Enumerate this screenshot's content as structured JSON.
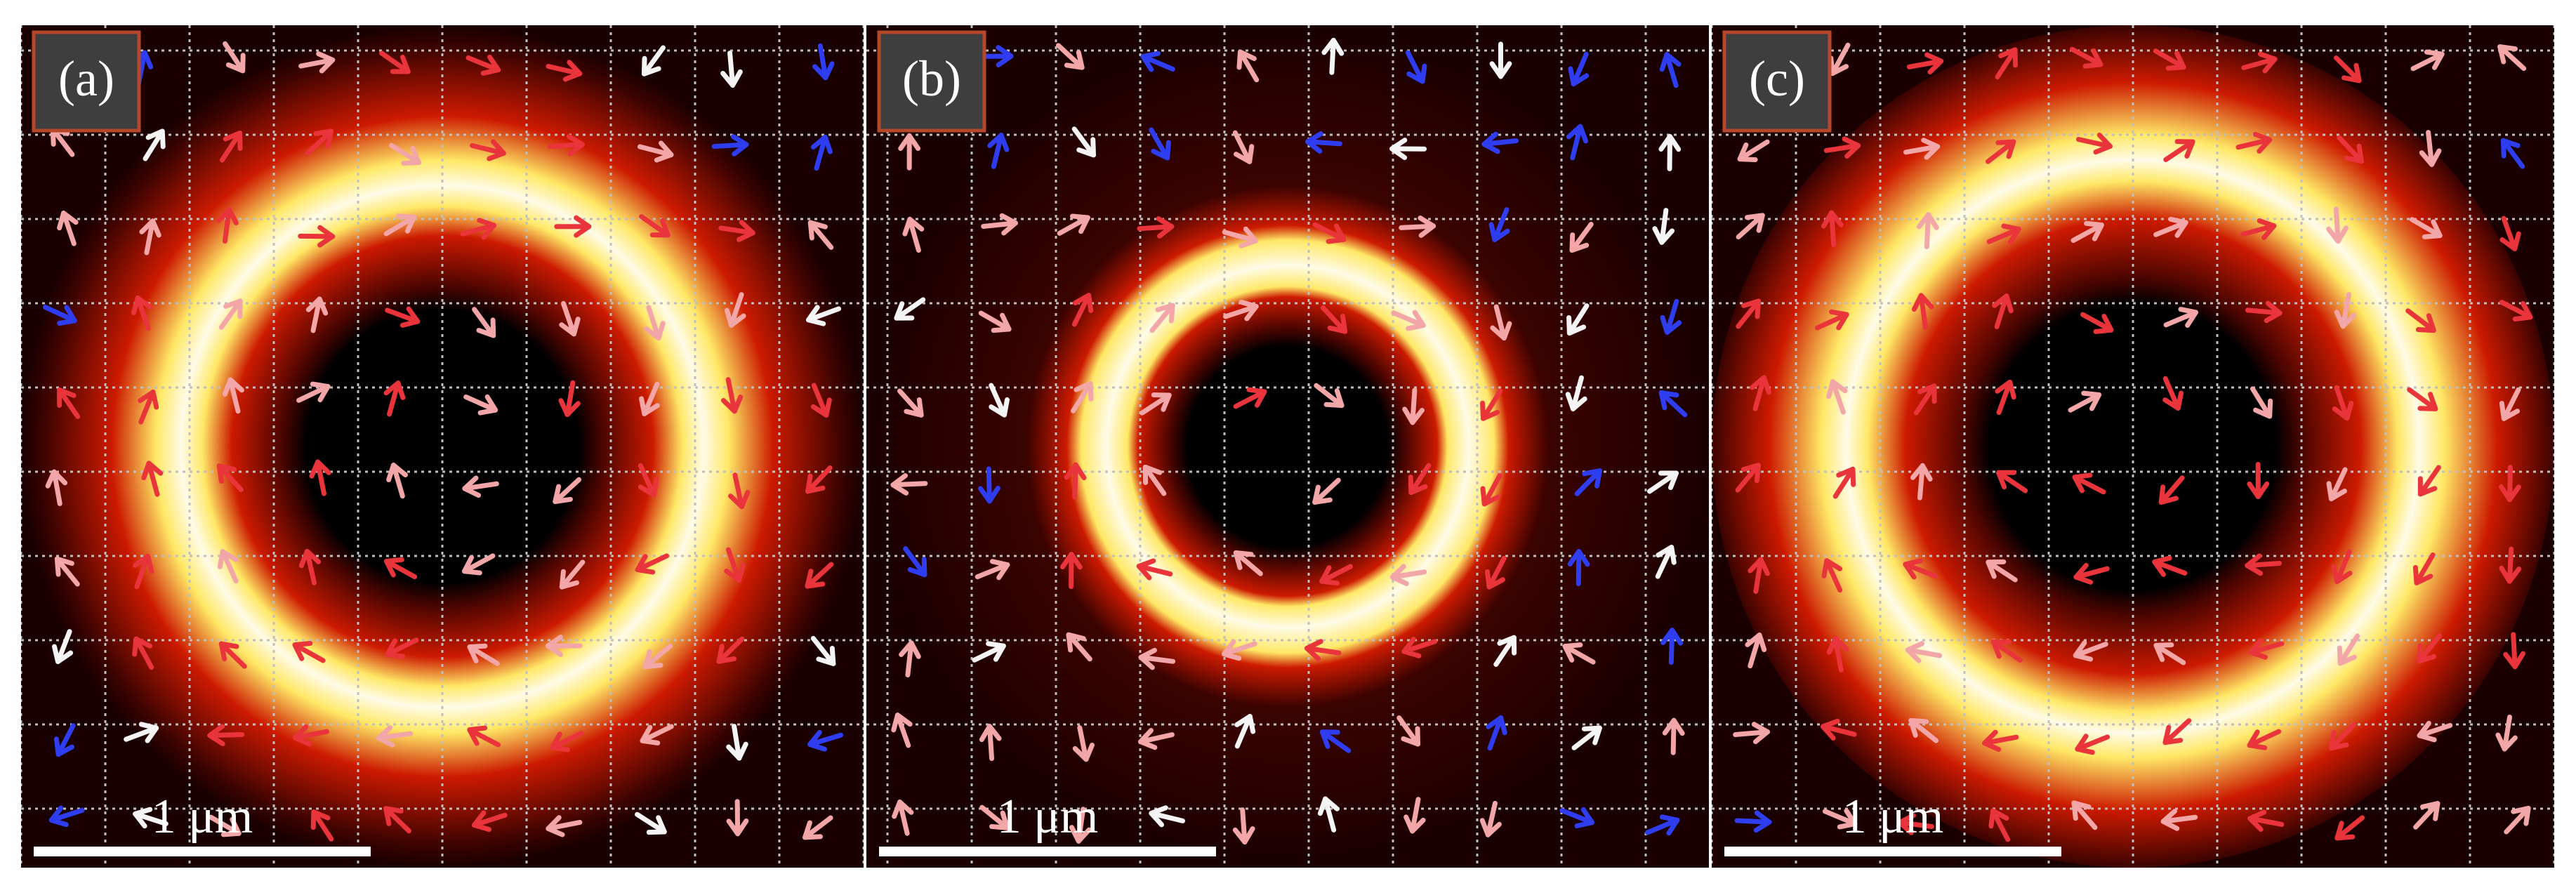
{
  "panels": [
    {
      "id": "a",
      "label": "(a)",
      "scale_bar_label": "1 μm",
      "ring": {
        "dark_core": 0.38,
        "bright_peak": 0.62,
        "fade": 0.95
      },
      "arrow_rows": 10,
      "arrow_cols": 10
    },
    {
      "id": "b",
      "label": "(b)",
      "scale_bar_label": "1 μm",
      "ring": {
        "dark_core": 0.28,
        "bright_peak": 0.43,
        "fade": 0.62
      },
      "arrow_rows": 10,
      "arrow_cols": 10
    },
    {
      "id": "c",
      "label": "(c)",
      "scale_bar_label": "1 μm",
      "ring": {
        "dark_core": 0.4,
        "bright_peak": 0.68,
        "fade": 1.05
      },
      "arrow_rows": 10,
      "arrow_cols": 10
    }
  ],
  "colors": {
    "background": "#000000",
    "ring_red": "#cc1a00",
    "ring_yellow": "#ffe866",
    "ring_white": "#fffbe8",
    "grid": "#bfbfbf",
    "label_box": "#3e3e3e",
    "label_border": "#b5472b",
    "scale_bar": "#ffffff",
    "arrow_red": "#e8343a",
    "arrow_pink": "#f2a6a8",
    "arrow_white": "#f4f4f4",
    "arrow_blue": "#2f3df0"
  }
}
